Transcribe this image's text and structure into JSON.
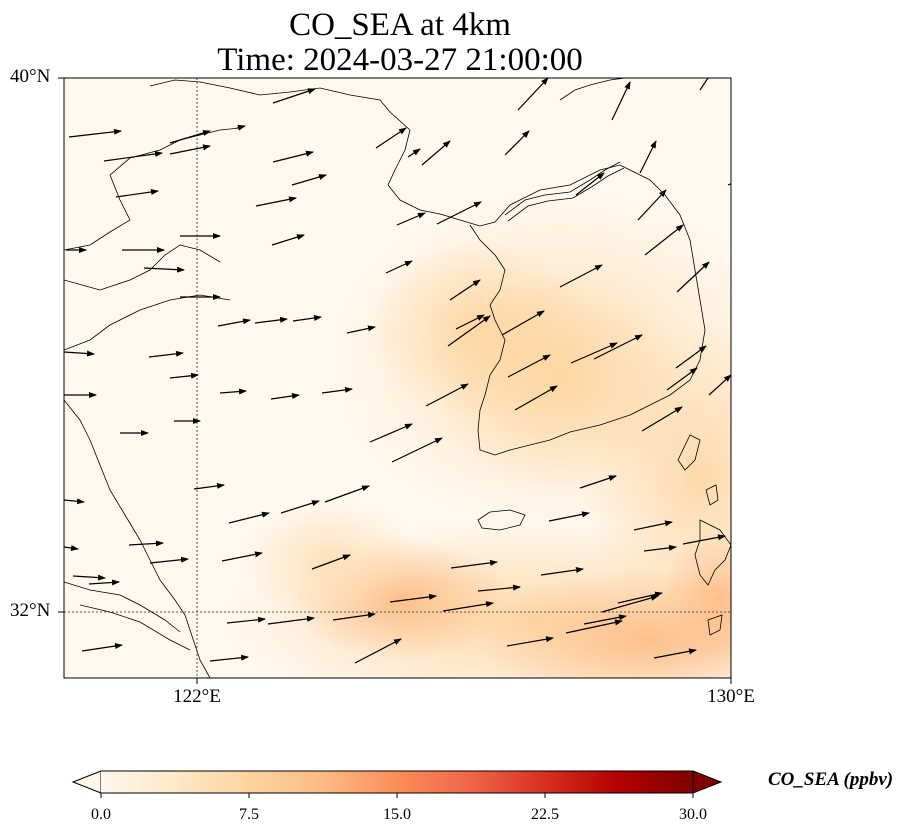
{
  "title": {
    "line1": "CO_SEA at 4km",
    "line2": "Time: 2024-03-27 21:00:00"
  },
  "map": {
    "projection": "PlateCarree",
    "lon_range": [
      120,
      130
    ],
    "lat_range": [
      30.75,
      40
    ],
    "lat_labels": [
      "40°N",
      "32°N"
    ],
    "lon_labels": [
      "122°E",
      "130°E"
    ],
    "gridlines": {
      "lons": [
        122
      ],
      "lats": [
        32
      ],
      "style": "dotted"
    },
    "features": [
      "coastline",
      "wind-vectors"
    ]
  },
  "field": {
    "variable": "CO_SEA",
    "units": "ppbv",
    "description_min": 0,
    "description_max_visible_approx": 13,
    "colormap": "OrRd"
  },
  "colorbar": {
    "label": "CO_SEA (ppbv)",
    "min": 0,
    "max": 30,
    "ticks": [
      "0.0",
      "7.5",
      "15.0",
      "22.5",
      "30.0"
    ],
    "extend": "both",
    "colors": [
      "#fff7ec",
      "#fee8c8",
      "#fdd49e",
      "#fdbb84",
      "#fc8d59",
      "#ef6548",
      "#d7301f",
      "#b30000",
      "#7f0000"
    ]
  }
}
